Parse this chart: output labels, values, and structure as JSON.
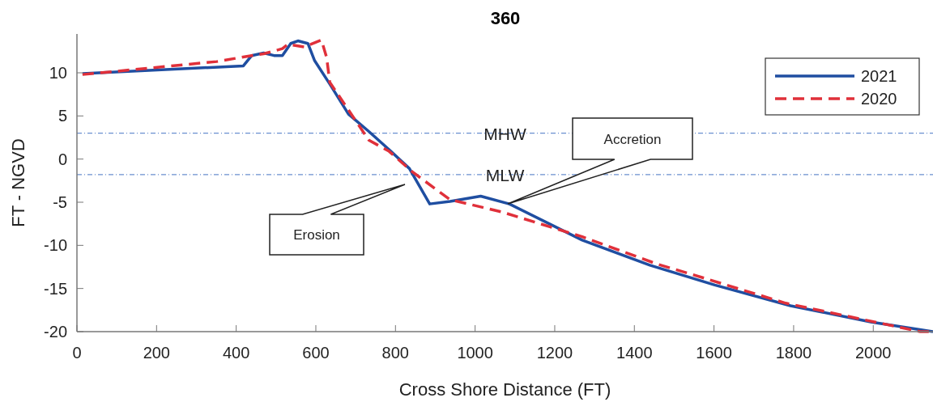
{
  "chart_data": {
    "type": "line",
    "title": "360",
    "xlabel": "Cross Shore Distance (FT)",
    "ylabel": "FT - NGVD",
    "xlim": [
      0,
      2150
    ],
    "xticks": [
      0,
      200,
      400,
      600,
      800,
      1000,
      1200,
      1400,
      1600,
      1800,
      2000
    ],
    "ylim": [
      -20,
      14.5
    ],
    "yticks": [
      -20,
      -15,
      -10,
      -5,
      0,
      5,
      10
    ],
    "grid": false,
    "legend": "top right",
    "series": [
      {
        "name": "2021",
        "color": "#1f4ea1",
        "line_style": "solid",
        "x": [
          14,
          418,
          439,
          469,
          495,
          516,
          537,
          555,
          580,
          597,
          635,
          682,
          733,
          784,
          835,
          886,
          937,
          1014,
          1086,
          1269,
          1439,
          1602,
          1792,
          1996,
          2150
        ],
        "values": [
          9.9,
          10.8,
          12.0,
          12.3,
          12.0,
          12.0,
          13.4,
          13.7,
          13.4,
          11.4,
          8.7,
          5.2,
          3.2,
          1.1,
          -1.1,
          -5.2,
          -4.9,
          -4.3,
          -5.2,
          -9.4,
          -12.3,
          -14.6,
          -17.0,
          -18.9,
          -20
        ]
      },
      {
        "name": "2020",
        "color": "#e0303a",
        "line_style": "dashed",
        "x": [
          14,
          351,
          439,
          469,
          516,
          530,
          571,
          614,
          627,
          635,
          733,
          784,
          843,
          937,
          983,
          1065,
          1269,
          1459,
          1547,
          1780,
          2118,
          2150
        ],
        "values": [
          9.8,
          11.3,
          12.0,
          12.2,
          12.8,
          13.3,
          13.0,
          13.8,
          11.8,
          8.9,
          2.2,
          0.9,
          -1.5,
          -4.7,
          -5.2,
          -6.1,
          -9.0,
          -12.2,
          -13.4,
          -16.7,
          -20.0,
          -20
        ]
      }
    ],
    "ref_lines": [
      {
        "axis": "y",
        "value": 3.0,
        "label": "MHW",
        "color": "#6a8fd0",
        "line_style": "dashed"
      },
      {
        "axis": "y",
        "value": -1.8,
        "label": "MLW",
        "color": "#6a8fd0",
        "line_style": "dashed"
      }
    ],
    "annotations": [
      "Erosion",
      "Accretion"
    ]
  }
}
